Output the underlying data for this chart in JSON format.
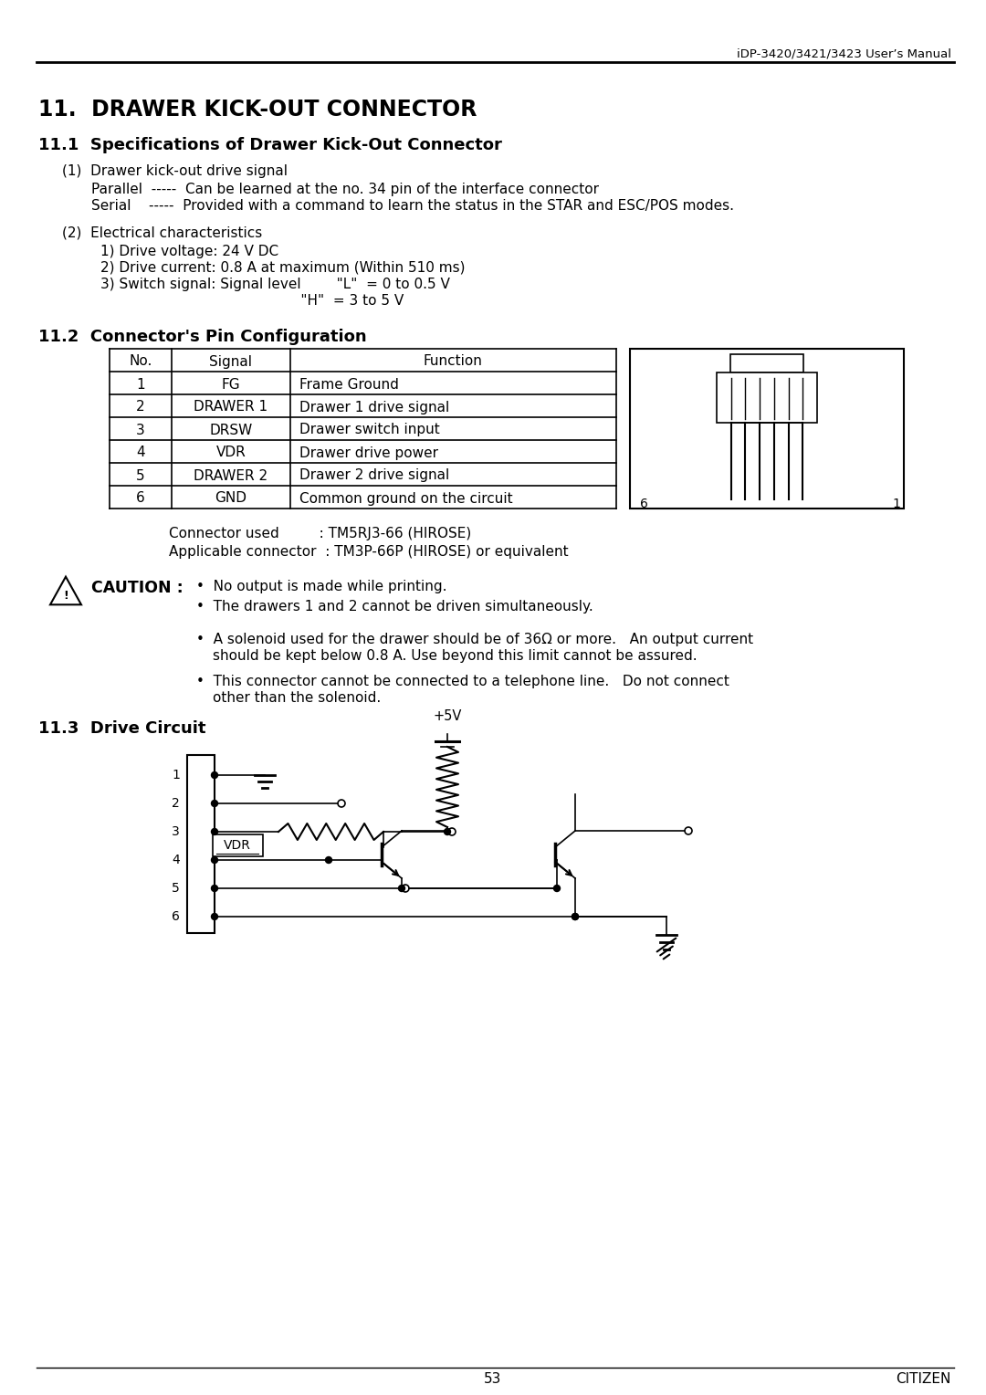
{
  "header_text": "iDP-3420/3421/3423 User’s Manual",
  "title": "11.  DRAWER KICK-OUT CONNECTOR",
  "sec11_1": "11.1  Specifications of Drawer Kick-Out Connector",
  "p1_header": "(1)  Drawer kick-out drive signal",
  "p1_parallel": "Parallel  -----  Can be learned at the no. 34 pin of the interface connector",
  "p1_serial": "Serial    -----  Provided with a command to learn the status in the STAR and ESC/POS modes.",
  "p2_header": "(2)  Electrical characteristics",
  "p2_1": "1) Drive voltage: 24 V DC",
  "p2_2": "2) Drive current: 0.8 A at maximum (Within 510 ms)",
  "p2_3a": "3) Switch signal: Signal level        \"L\"  = 0 to 0.5 V",
  "p2_3b": "                                             \"H\"  = 3 to 5 V",
  "sec11_2": "11.2  Connector's Pin Configuration",
  "table_headers": [
    "No.",
    "Signal",
    "Function"
  ],
  "table_rows": [
    [
      "1",
      "FG",
      "Frame Ground"
    ],
    [
      "2",
      "DRAWER 1",
      "Drawer 1 drive signal"
    ],
    [
      "3",
      "DRSW",
      "Drawer switch input"
    ],
    [
      "4",
      "VDR",
      "Drawer drive power"
    ],
    [
      "5",
      "DRAWER 2",
      "Drawer 2 drive signal"
    ],
    [
      "6",
      "GND",
      "Common ground on the circuit"
    ]
  ],
  "conn_used": "Connector used         : TM5RJ3-66 (HIROSE)",
  "conn_app": "Applicable connector  : TM3P-66P (HIROSE) or equivalent",
  "caution_line0": "No output is made while printing.",
  "caution_bullets": [
    "The drawers 1 and 2 cannot be driven simultaneously.",
    "A solenoid used for the drawer should be of 36Ω or more.   An output current\nshould be kept below 0.8 A. Use beyond this limit cannot be assured.",
    "This connector cannot be connected to a telephone line.   Do not connect\nother than the solenoid."
  ],
  "sec11_3": "11.3  Drive Circuit",
  "footer_page": "53",
  "footer_brand": "CITIZEN"
}
